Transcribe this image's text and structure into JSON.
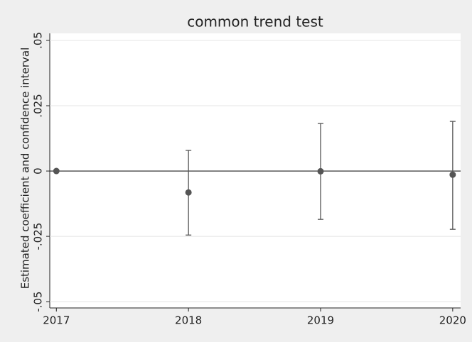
{
  "chart_data": {
    "type": "scatter",
    "title": "common trend test",
    "y_label": "Estimated coefficient and confidence interval",
    "x": [
      2017,
      2018,
      2019,
      2020
    ],
    "values": [
      0,
      -0.0082,
      -0.0001,
      -0.0014
    ],
    "ci_low": [
      0,
      -0.0245,
      -0.0185,
      -0.0223
    ],
    "ci_high": [
      0,
      0.0079,
      0.0182,
      0.019
    ],
    "color": "#555555",
    "xlim": [
      2016.95,
      2020.06
    ],
    "xticks": [
      2017,
      2018,
      2019,
      2020
    ],
    "ylim": [
      -0.0524,
      0.0527
    ],
    "yticks": [
      {
        "value": -0.05,
        "label": "-.05"
      },
      {
        "value": -0.025,
        "label": "-.025"
      },
      0,
      {
        "value": 0.025,
        "label": ".025"
      },
      {
        "value": 0.05,
        "label": ".05"
      }
    ],
    "grid": true,
    "reference_line": 0
  }
}
